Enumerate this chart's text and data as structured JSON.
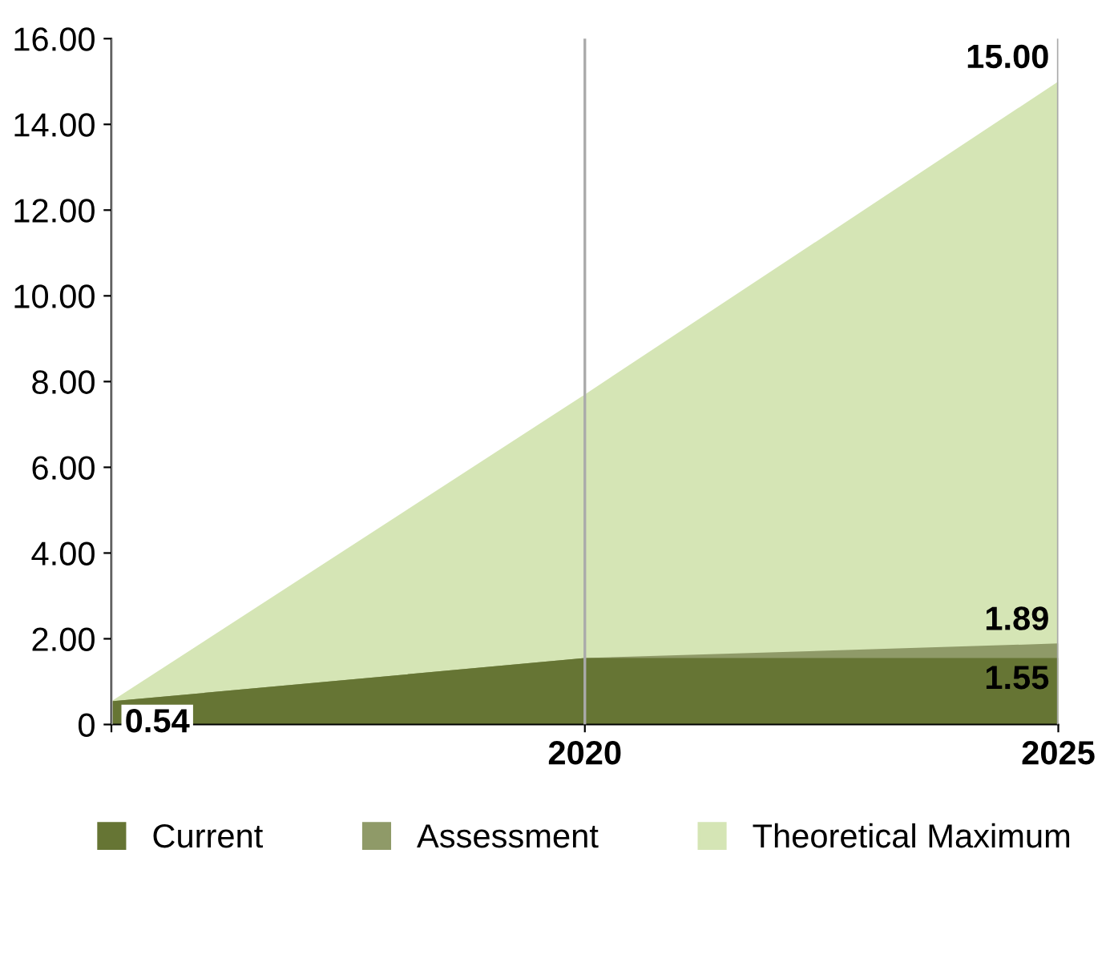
{
  "chart_data": {
    "type": "area",
    "categories": [
      null,
      "2020",
      "2025"
    ],
    "series": [
      {
        "name": "Theoretical Maximum",
        "color": "#d5e5b5",
        "values": [
          0.54,
          7.7,
          15.0
        ],
        "value_labels": [
          null,
          null,
          "15.00"
        ]
      },
      {
        "name": "Assessment",
        "color": "#8f9a68",
        "values": [
          0.54,
          1.55,
          1.89
        ],
        "value_labels": [
          null,
          null,
          "1.89"
        ]
      },
      {
        "name": "Current",
        "color": "#667534",
        "values": [
          0.54,
          1.55,
          1.55
        ],
        "value_labels": [
          "0.54",
          null,
          "1.55"
        ]
      }
    ],
    "ylim": [
      0,
      16
    ],
    "yticks": [
      0,
      {
        "value": 2,
        "label": "2.00"
      },
      {
        "value": 4,
        "label": "4.00"
      },
      {
        "value": 6,
        "label": "6.00"
      },
      {
        "value": 8,
        "label": "8.00"
      },
      {
        "value": 10,
        "label": "10.00"
      },
      {
        "value": 12,
        "label": "12.00"
      },
      {
        "value": 14,
        "label": "14.00"
      },
      {
        "value": 16,
        "label": "16.00"
      }
    ],
    "grid": "x",
    "legend": "bottom"
  }
}
